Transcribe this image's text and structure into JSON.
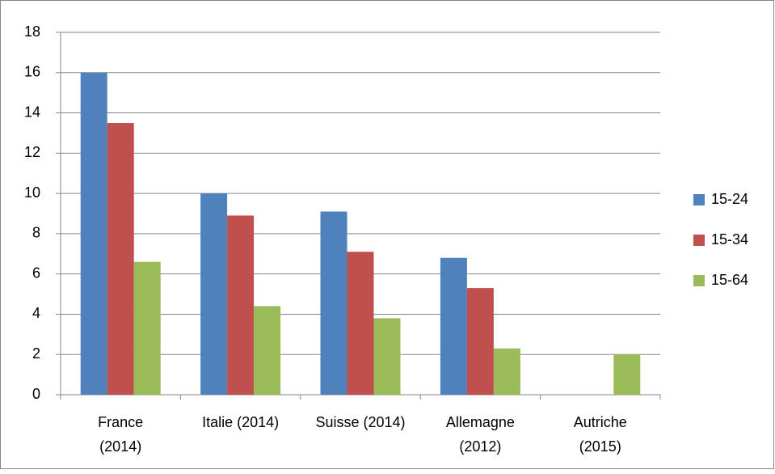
{
  "chart_data": {
    "type": "bar",
    "categories": [
      [
        "France",
        "(2014)"
      ],
      [
        "Italie (2014)"
      ],
      [
        "Suisse (2014)"
      ],
      [
        "Allemagne",
        "(2012)"
      ],
      [
        "Autriche",
        "(2015)"
      ]
    ],
    "series": [
      {
        "name": "15-24",
        "color": "#4f81bd",
        "values": [
          16,
          10,
          9.1,
          6.8,
          null
        ]
      },
      {
        "name": "15-34",
        "color": "#c0504d",
        "values": [
          13.5,
          8.9,
          7.1,
          5.3,
          null
        ]
      },
      {
        "name": "15-64",
        "color": "#9bbb59",
        "values": [
          6.6,
          4.4,
          3.8,
          2.3,
          2.0
        ]
      }
    ],
    "ylim": [
      0,
      18
    ],
    "yticks": [
      0,
      2,
      4,
      6,
      8,
      10,
      12,
      14,
      16,
      18
    ],
    "grid": true,
    "legend": "right"
  }
}
